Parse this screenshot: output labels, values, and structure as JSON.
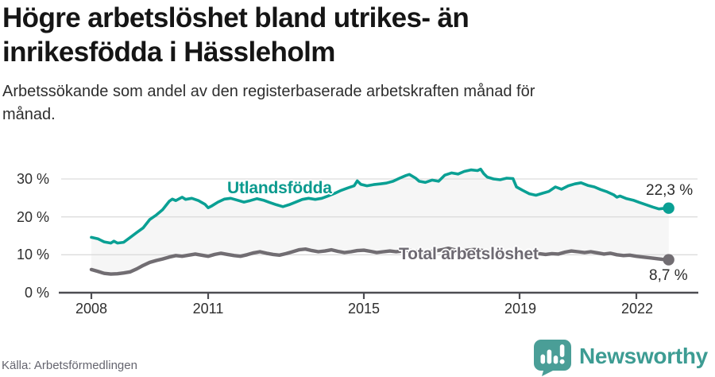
{
  "title": "Högre arbetslöshet bland utrikes- än\ninrikesfödda i Hässleholm",
  "subtitle": "Arbetssökande som andel av den registerbaserade arbetskraften månad för\nmånad.",
  "source": "Källa: Arbetsförmedlingen",
  "logo": {
    "brand": "Newsworthy",
    "wordmark_color": "#3d9c93",
    "icon_color": "#4a9e97",
    "icon_name": "newsworthy-bar-chart-bubble-icon"
  },
  "chart_data": {
    "type": "line",
    "title": "Högre arbetslöshet bland utrikes- än inrikesfödda i Hässleholm",
    "subtitle": "Arbetssökande som andel av den registerbaserade arbetskraften månad för månad.",
    "xlabel": "",
    "ylabel": "",
    "unit": "%",
    "grid": true,
    "xlim": [
      2007.8,
      2023.2
    ],
    "ylim": [
      0,
      36
    ],
    "x_tick_values": [
      2008,
      2011,
      2015,
      2019,
      2022
    ],
    "x_tick_labels": [
      "2008",
      "2011",
      "2015",
      "2019",
      "2022"
    ],
    "y_tick_values": [
      0,
      10,
      20,
      30
    ],
    "y_tick_labels": [
      "0 %",
      "10 %",
      "20 %",
      "30 %"
    ],
    "fill_between_color": "#f6f6f6",
    "grid_color": "#dcdcdc",
    "axis_color": "#4d4d52",
    "series": [
      {
        "name": "Utlandsfödda",
        "color": "#0aa094",
        "end_label": "22,3 %",
        "end_value": 22.3,
        "points": [
          [
            2008.0,
            14.6
          ],
          [
            2008.17,
            14.2
          ],
          [
            2008.33,
            13.4
          ],
          [
            2008.5,
            13.1
          ],
          [
            2008.58,
            13.6
          ],
          [
            2008.67,
            13.1
          ],
          [
            2008.83,
            13.3
          ],
          [
            2008.92,
            14.0
          ],
          [
            2009.0,
            14.6
          ],
          [
            2009.17,
            15.9
          ],
          [
            2009.33,
            17.1
          ],
          [
            2009.5,
            19.3
          ],
          [
            2009.67,
            20.5
          ],
          [
            2009.83,
            21.9
          ],
          [
            2010.0,
            24.1
          ],
          [
            2010.08,
            24.7
          ],
          [
            2010.17,
            24.3
          ],
          [
            2010.33,
            25.2
          ],
          [
            2010.42,
            24.6
          ],
          [
            2010.58,
            24.9
          ],
          [
            2010.75,
            24.3
          ],
          [
            2010.92,
            23.3
          ],
          [
            2011.0,
            22.4
          ],
          [
            2011.08,
            22.8
          ],
          [
            2011.25,
            23.9
          ],
          [
            2011.42,
            24.7
          ],
          [
            2011.58,
            24.9
          ],
          [
            2011.75,
            24.4
          ],
          [
            2011.92,
            23.9
          ],
          [
            2012.08,
            24.3
          ],
          [
            2012.25,
            24.8
          ],
          [
            2012.42,
            24.4
          ],
          [
            2012.58,
            23.8
          ],
          [
            2012.75,
            23.2
          ],
          [
            2012.92,
            22.7
          ],
          [
            2013.08,
            23.2
          ],
          [
            2013.25,
            23.9
          ],
          [
            2013.42,
            24.6
          ],
          [
            2013.58,
            24.9
          ],
          [
            2013.75,
            24.6
          ],
          [
            2013.92,
            24.9
          ],
          [
            2014.08,
            25.5
          ],
          [
            2014.25,
            26.2
          ],
          [
            2014.42,
            27.0
          ],
          [
            2014.58,
            27.6
          ],
          [
            2014.75,
            28.2
          ],
          [
            2014.83,
            29.5
          ],
          [
            2014.92,
            28.6
          ],
          [
            2015.08,
            28.2
          ],
          [
            2015.25,
            28.5
          ],
          [
            2015.42,
            28.7
          ],
          [
            2015.58,
            28.9
          ],
          [
            2015.75,
            29.4
          ],
          [
            2015.92,
            30.2
          ],
          [
            2016.08,
            30.9
          ],
          [
            2016.17,
            31.2
          ],
          [
            2016.33,
            30.2
          ],
          [
            2016.42,
            29.4
          ],
          [
            2016.58,
            29.1
          ],
          [
            2016.75,
            29.7
          ],
          [
            2016.92,
            29.4
          ],
          [
            2017.08,
            31.0
          ],
          [
            2017.25,
            31.6
          ],
          [
            2017.42,
            31.3
          ],
          [
            2017.58,
            32.0
          ],
          [
            2017.75,
            32.4
          ],
          [
            2017.92,
            32.2
          ],
          [
            2018.0,
            32.6
          ],
          [
            2018.08,
            31.4
          ],
          [
            2018.17,
            30.5
          ],
          [
            2018.33,
            30.0
          ],
          [
            2018.5,
            29.8
          ],
          [
            2018.67,
            30.2
          ],
          [
            2018.83,
            30.1
          ],
          [
            2018.92,
            27.9
          ],
          [
            2019.08,
            27.0
          ],
          [
            2019.25,
            26.1
          ],
          [
            2019.42,
            25.7
          ],
          [
            2019.58,
            26.2
          ],
          [
            2019.75,
            26.7
          ],
          [
            2019.92,
            27.9
          ],
          [
            2020.08,
            27.3
          ],
          [
            2020.25,
            28.2
          ],
          [
            2020.42,
            28.7
          ],
          [
            2020.58,
            29.0
          ],
          [
            2020.75,
            28.3
          ],
          [
            2020.92,
            27.9
          ],
          [
            2021.08,
            27.2
          ],
          [
            2021.25,
            26.6
          ],
          [
            2021.42,
            25.8
          ],
          [
            2021.5,
            25.2
          ],
          [
            2021.58,
            25.5
          ],
          [
            2021.75,
            24.8
          ],
          [
            2021.92,
            24.4
          ],
          [
            2022.08,
            23.8
          ],
          [
            2022.25,
            23.2
          ],
          [
            2022.42,
            22.6
          ],
          [
            2022.58,
            22.1
          ],
          [
            2022.67,
            22.2
          ],
          [
            2022.83,
            22.3
          ]
        ]
      },
      {
        "name": "Total arbetslöshet",
        "color": "#716d72",
        "end_label": "8,7 %",
        "end_value": 8.7,
        "points": [
          [
            2008.0,
            6.1
          ],
          [
            2008.17,
            5.6
          ],
          [
            2008.33,
            5.1
          ],
          [
            2008.5,
            4.9
          ],
          [
            2008.67,
            5.0
          ],
          [
            2008.83,
            5.2
          ],
          [
            2009.0,
            5.5
          ],
          [
            2009.17,
            6.3
          ],
          [
            2009.33,
            7.2
          ],
          [
            2009.5,
            8.0
          ],
          [
            2009.67,
            8.5
          ],
          [
            2009.83,
            8.9
          ],
          [
            2010.0,
            9.4
          ],
          [
            2010.17,
            9.8
          ],
          [
            2010.33,
            9.6
          ],
          [
            2010.5,
            9.9
          ],
          [
            2010.67,
            10.2
          ],
          [
            2010.83,
            9.9
          ],
          [
            2011.0,
            9.6
          ],
          [
            2011.17,
            10.1
          ],
          [
            2011.33,
            10.4
          ],
          [
            2011.5,
            10.1
          ],
          [
            2011.67,
            9.8
          ],
          [
            2011.83,
            9.6
          ],
          [
            2012.0,
            10.0
          ],
          [
            2012.17,
            10.5
          ],
          [
            2012.33,
            10.8
          ],
          [
            2012.5,
            10.4
          ],
          [
            2012.67,
            10.1
          ],
          [
            2012.83,
            9.9
          ],
          [
            2013.0,
            10.3
          ],
          [
            2013.17,
            10.8
          ],
          [
            2013.33,
            11.3
          ],
          [
            2013.5,
            11.5
          ],
          [
            2013.67,
            11.1
          ],
          [
            2013.83,
            10.8
          ],
          [
            2014.0,
            11.0
          ],
          [
            2014.17,
            11.3
          ],
          [
            2014.33,
            10.9
          ],
          [
            2014.5,
            10.6
          ],
          [
            2014.67,
            10.8
          ],
          [
            2014.83,
            11.1
          ],
          [
            2015.0,
            11.2
          ],
          [
            2015.17,
            10.9
          ],
          [
            2015.33,
            10.6
          ],
          [
            2015.5,
            10.8
          ],
          [
            2015.67,
            11.0
          ],
          [
            2015.83,
            10.8
          ],
          [
            2016.0,
            11.0
          ],
          [
            2016.17,
            11.2
          ],
          [
            2016.33,
            10.9
          ],
          [
            2016.5,
            10.6
          ],
          [
            2016.67,
            10.8
          ],
          [
            2016.83,
            11.0
          ],
          [
            2017.0,
            11.3
          ],
          [
            2017.17,
            11.7
          ],
          [
            2017.33,
            11.3
          ],
          [
            2017.5,
            11.0
          ],
          [
            2017.67,
            11.2
          ],
          [
            2017.83,
            11.4
          ],
          [
            2018.0,
            11.2
          ],
          [
            2018.17,
            10.9
          ],
          [
            2018.33,
            10.6
          ],
          [
            2018.5,
            10.4
          ],
          [
            2018.67,
            10.6
          ],
          [
            2018.83,
            10.3
          ],
          [
            2019.0,
            10.1
          ],
          [
            2019.17,
            10.4
          ],
          [
            2019.33,
            10.6
          ],
          [
            2019.5,
            10.3
          ],
          [
            2019.67,
            10.1
          ],
          [
            2019.83,
            10.3
          ],
          [
            2020.0,
            10.2
          ],
          [
            2020.17,
            10.7
          ],
          [
            2020.33,
            11.0
          ],
          [
            2020.5,
            10.8
          ],
          [
            2020.67,
            10.6
          ],
          [
            2020.83,
            10.8
          ],
          [
            2021.0,
            10.5
          ],
          [
            2021.17,
            10.2
          ],
          [
            2021.33,
            10.4
          ],
          [
            2021.5,
            10.0
          ],
          [
            2021.67,
            9.8
          ],
          [
            2021.83,
            9.9
          ],
          [
            2022.0,
            9.6
          ],
          [
            2022.17,
            9.4
          ],
          [
            2022.33,
            9.2
          ],
          [
            2022.5,
            9.0
          ],
          [
            2022.67,
            8.8
          ],
          [
            2022.83,
            8.7
          ]
        ]
      }
    ]
  }
}
